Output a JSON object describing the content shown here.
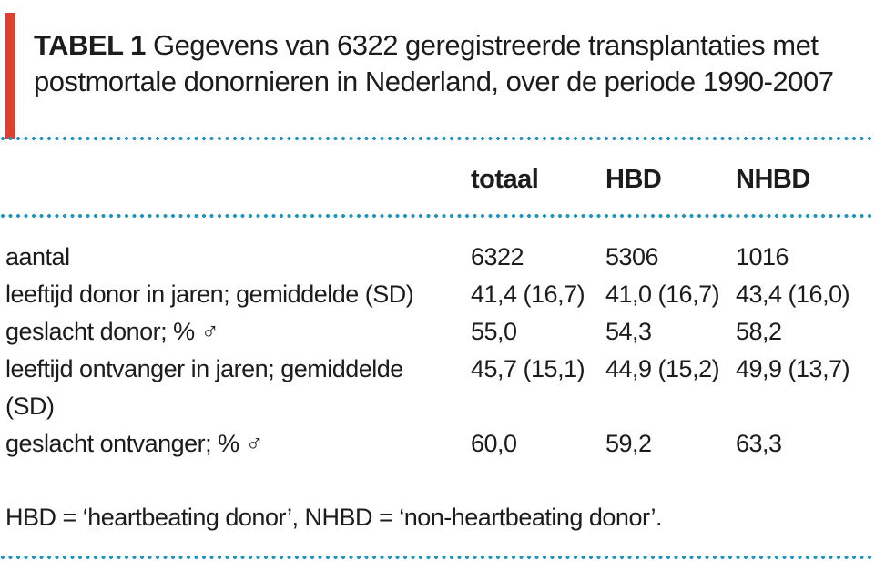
{
  "title": {
    "label": "TABEL 1",
    "line1": "Gegevens van 6322 geregistreerde transplantaties met",
    "line2": "postmortale donornieren in Nederland, over de periode 1990-2007"
  },
  "table": {
    "columns": [
      "totaal",
      "HBD",
      "NHBD"
    ],
    "rows": [
      {
        "label": "aantal",
        "values": [
          "6322",
          "5306",
          "1016"
        ]
      },
      {
        "label": "leeftijd donor in jaren; gemiddelde (SD)",
        "values": [
          "41,4 (16,7)",
          "41,0 (16,7)",
          "43,4 (16,0)"
        ]
      },
      {
        "label": "geslacht donor; % ♂",
        "values": [
          "55,0",
          "54,3",
          "58,2"
        ]
      },
      {
        "label": "leeftijd ontvanger in jaren; gemiddelde",
        "label2": "(SD)",
        "values": [
          "45,7 (15,1)",
          "44,9 (15,2)",
          "49,9 (13,7)"
        ]
      },
      {
        "label": "geslacht ontvanger; % ♂",
        "values": [
          "60,0",
          "59,2",
          "63,3"
        ]
      }
    ]
  },
  "footnote": "HBD = ‘heartbeating donor’, NHBD = ‘non-heartbeating donor’.",
  "chart_data": {
    "type": "table",
    "title": "TABEL 1 Gegevens van 6322 geregistreerde transplantaties met postmortale donornieren in Nederland, over de periode 1990-2007",
    "columns": [
      "",
      "totaal",
      "HBD",
      "NHBD"
    ],
    "rows": [
      [
        "aantal",
        "6322",
        "5306",
        "1016"
      ],
      [
        "leeftijd donor in jaren; gemiddelde (SD)",
        "41,4 (16,7)",
        "41,0 (16,7)",
        "43,4 (16,0)"
      ],
      [
        "geslacht donor; % ♂",
        "55,0",
        "54,3",
        "58,2"
      ],
      [
        "leeftijd ontvanger in jaren; gemiddelde (SD)",
        "45,7 (15,1)",
        "44,9 (15,2)",
        "49,9 (13,7)"
      ],
      [
        "geslacht ontvanger; % ♂",
        "60,0",
        "59,2",
        "63,3"
      ]
    ],
    "footnote": "HBD = ‘heartbeating donor’, NHBD = ‘non-heartbeating donor’."
  },
  "colors": {
    "accent-red": "#dd3f30",
    "dot-blue": "#1f96c3",
    "text": "#1c1c1c"
  }
}
